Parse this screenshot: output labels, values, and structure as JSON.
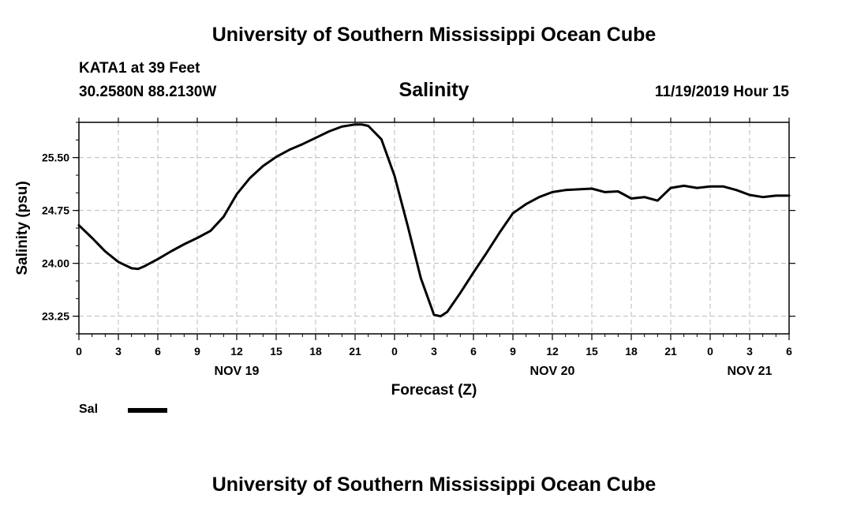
{
  "header": {
    "title": "University of Southern Mississippi Ocean Cube",
    "station": "KATA1 at 39 Feet",
    "coords": "30.2580N 88.2130W",
    "chart_title": "Salinity",
    "datetime": "11/19/2019 Hour 15"
  },
  "footer": {
    "title": "University of Southern Mississippi Ocean Cube"
  },
  "legend": {
    "label": "Sal",
    "color": "#000000"
  },
  "chart_data": {
    "type": "line",
    "title": "Salinity",
    "xlabel": "Forecast (Z)",
    "ylabel": "Salinity (psu)",
    "xlim": [
      0,
      54
    ],
    "ylim": [
      23.0,
      26.0
    ],
    "grid": true,
    "x_ticks": [
      0,
      3,
      6,
      9,
      12,
      15,
      18,
      21,
      24,
      27,
      30,
      33,
      36,
      39,
      42,
      45,
      48,
      51,
      54
    ],
    "x_tick_labels": [
      "0",
      "3",
      "6",
      "9",
      "12",
      "15",
      "18",
      "21",
      "0",
      "3",
      "6",
      "9",
      "12",
      "15",
      "18",
      "21",
      "0",
      "3",
      "6"
    ],
    "y_ticks": [
      23.25,
      24.0,
      24.75,
      25.5
    ],
    "y_tick_labels": [
      "23.25",
      "24.00",
      "24.75",
      "25.50"
    ],
    "day_labels": [
      {
        "x": 12,
        "label": "NOV 19"
      },
      {
        "x": 36,
        "label": "NOV 20"
      },
      {
        "x": 51,
        "label": "NOV 21"
      }
    ],
    "series": [
      {
        "name": "Sal",
        "x": [
          0,
          1,
          2,
          3,
          4,
          4.5,
          5,
          6,
          7,
          8,
          9,
          10,
          11,
          12,
          13,
          14,
          15,
          16,
          17,
          18,
          19,
          20,
          21,
          21.5,
          22,
          23,
          24,
          25,
          26,
          27,
          27.5,
          28,
          29,
          30,
          31,
          32,
          33,
          34,
          35,
          36,
          37,
          38,
          39,
          40,
          41,
          42,
          43,
          44,
          45,
          46,
          47,
          48,
          49,
          50,
          51,
          52,
          53,
          54
        ],
        "values": [
          24.54,
          24.36,
          24.17,
          24.02,
          23.93,
          23.92,
          23.96,
          24.06,
          24.17,
          24.27,
          24.36,
          24.46,
          24.66,
          24.98,
          25.21,
          25.38,
          25.51,
          25.61,
          25.69,
          25.78,
          25.87,
          25.94,
          25.97,
          25.97,
          25.95,
          25.76,
          25.24,
          24.53,
          23.79,
          23.27,
          23.25,
          23.31,
          23.58,
          23.87,
          24.15,
          24.44,
          24.71,
          24.84,
          24.94,
          25.01,
          25.04,
          25.05,
          25.06,
          25.01,
          25.02,
          24.92,
          24.94,
          24.89,
          25.07,
          25.1,
          25.07,
          25.09,
          25.09,
          25.04,
          24.97,
          24.94,
          24.96,
          24.96
        ]
      }
    ]
  }
}
